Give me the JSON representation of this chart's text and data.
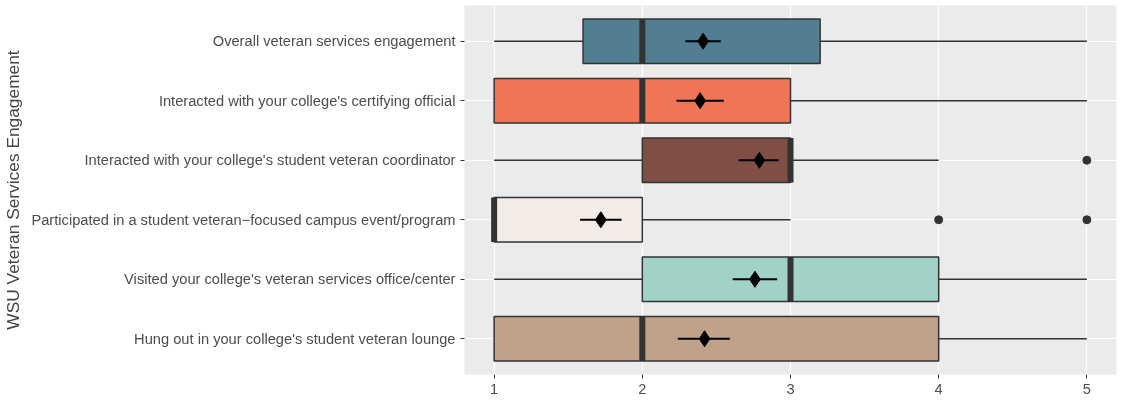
{
  "chart_data": {
    "type": "box",
    "orientation": "horizontal",
    "ylabel": "WSU Veteran Services Engagement",
    "categories": [
      "Overall veteran services engagement",
      "Interacted with your college's certifying official",
      "Interacted with your college's student veteran coordinator",
      "Participated in a student veteran−focused campus event/program",
      "Visited your college's veteran services office/center",
      "Hung out in your college's student veteran lounge"
    ],
    "colors": [
      "#527e92",
      "#f07556",
      "#7f4f45",
      "#f3ece6",
      "#a1d2c7",
      "#c2a18b"
    ],
    "boxes": [
      {
        "low": 1,
        "q1": 1.6,
        "median": 2,
        "q3": 3.2,
        "high": 5
      },
      {
        "low": 1,
        "q1": 1,
        "median": 2,
        "q3": 3,
        "high": 5
      },
      {
        "low": 1,
        "q1": 2,
        "median": 3,
        "q3": 3,
        "high": 4,
        "outliers": [
          5
        ]
      },
      {
        "low": 1,
        "q1": 1,
        "median": 1,
        "q3": 2,
        "high": 3,
        "outliers": [
          4,
          5
        ]
      },
      {
        "low": 1,
        "q1": 2,
        "median": 3,
        "q3": 4,
        "high": 5
      },
      {
        "low": 1,
        "q1": 1,
        "median": 2,
        "q3": 4,
        "high": 5
      }
    ],
    "series": [
      {
        "type": "scatter",
        "color": "#000000",
        "marker": "diamond",
        "values": [
          2.41,
          2.39,
          2.79,
          1.72,
          2.76,
          2.42
        ],
        "errors": [
          [
            2.29,
            2.53
          ],
          [
            2.23,
            2.55
          ],
          [
            2.65,
            2.92
          ],
          [
            1.58,
            1.86
          ],
          [
            2.61,
            2.91
          ],
          [
            2.24,
            2.59
          ]
        ]
      }
    ],
    "xlim": [
      0.8,
      5.2
    ],
    "xticks": [
      1,
      2,
      3,
      4,
      5
    ],
    "grid": true
  }
}
